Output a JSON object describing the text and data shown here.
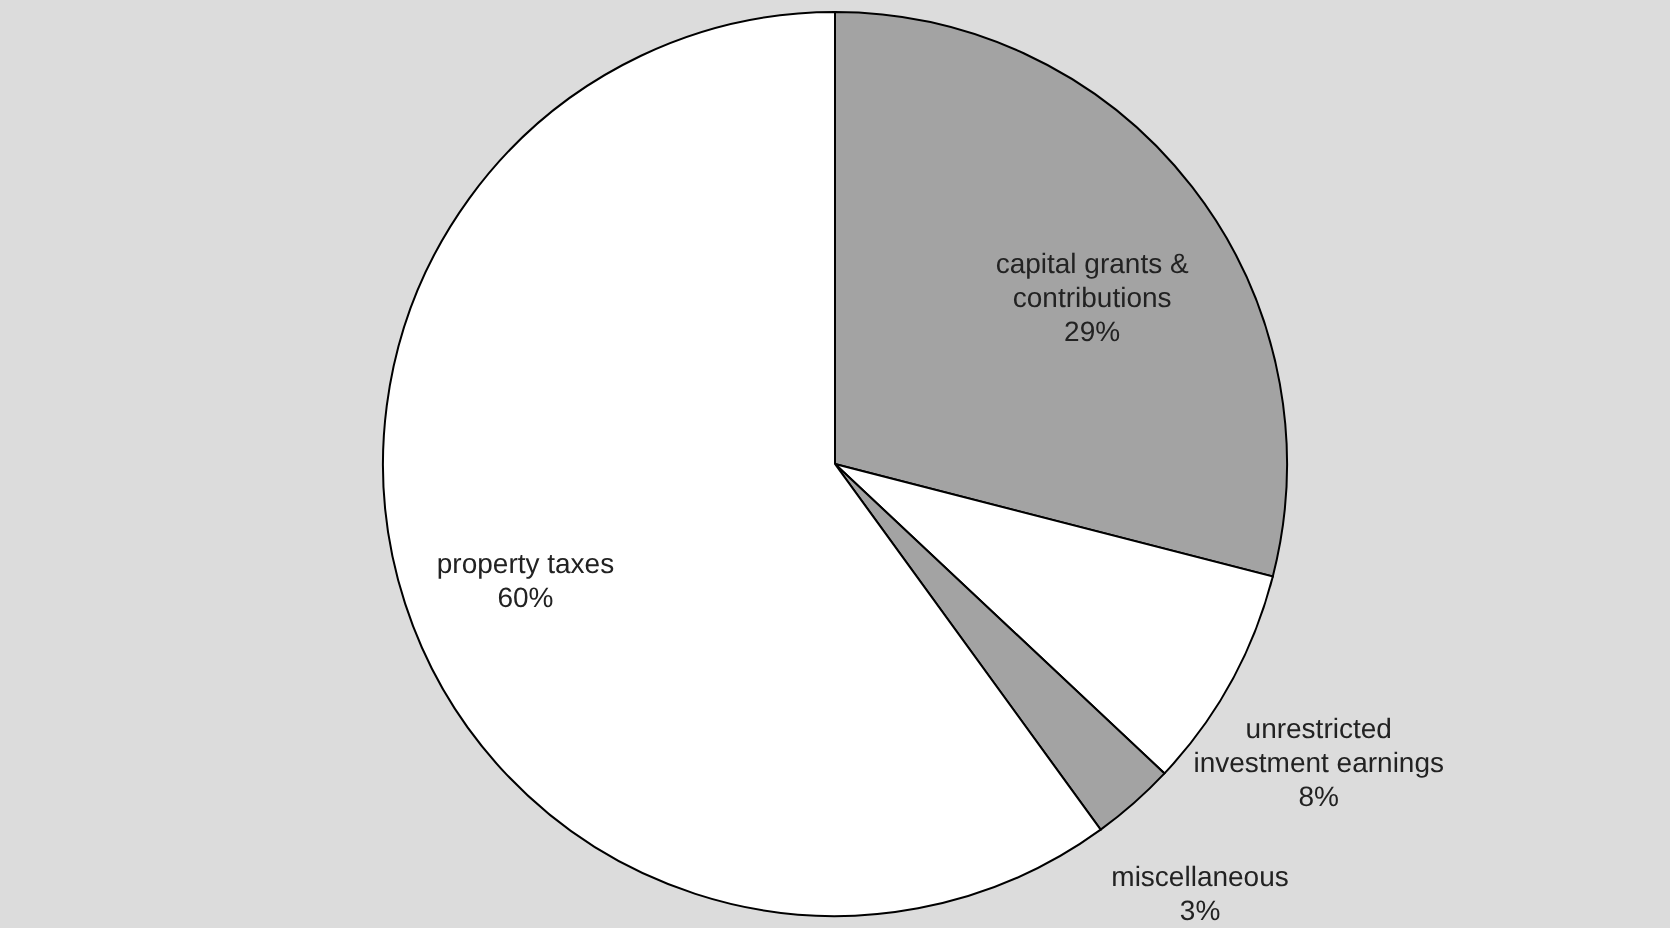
{
  "chart_data": {
    "type": "pie",
    "categories": [
      "capital grants & contributions",
      "unrestricted investment earnings",
      "miscellaneous",
      "property taxes"
    ],
    "values": [
      29,
      8,
      3,
      60
    ],
    "colors": [
      "#a3a3a3",
      "#ffffff",
      "#a3a3a3",
      "#ffffff"
    ],
    "value_labels": [
      "29%",
      "8%",
      "3%",
      "60%"
    ]
  }
}
